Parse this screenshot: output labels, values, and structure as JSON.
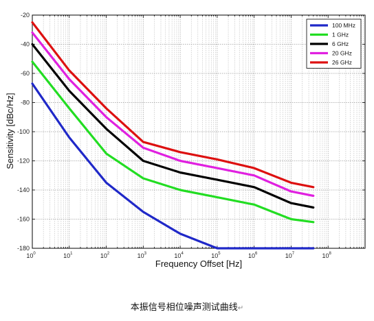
{
  "chart_data": {
    "type": "line",
    "title": "",
    "xlabel": "Frequency Offset [Hz]",
    "ylabel": "Sensitivity [dBc/Hz]",
    "xscale": "log",
    "xlim": [
      1,
      1000000000
    ],
    "ylim": [
      -180,
      -20
    ],
    "x_ticks": [
      {
        "base": "10",
        "exp": "0"
      },
      {
        "base": "10",
        "exp": "1"
      },
      {
        "base": "10",
        "exp": "2"
      },
      {
        "base": "10",
        "exp": "3"
      },
      {
        "base": "10",
        "exp": "4"
      },
      {
        "base": "10",
        "exp": "5"
      },
      {
        "base": "10",
        "exp": "6"
      },
      {
        "base": "10",
        "exp": "7"
      },
      {
        "base": "10",
        "exp": "8"
      }
    ],
    "y_ticks": [
      "-20",
      "-40",
      "-60",
      "-80",
      "-100",
      "-120",
      "-140",
      "-160",
      "-180"
    ],
    "grid": true,
    "legend_position": "top-right",
    "series": [
      {
        "name": "100 MHz",
        "color": "#1f28c8",
        "x": [
          1,
          10,
          100,
          1000,
          10000,
          100000,
          1000000,
          10000000,
          40000000
        ],
        "y": [
          -67,
          -104,
          -135,
          -155,
          -170,
          -180,
          -180,
          -180,
          -180
        ]
      },
      {
        "name": "1 GHz",
        "color": "#22dd22",
        "x": [
          1,
          10,
          100,
          1000,
          10000,
          100000,
          1000000,
          10000000,
          40000000
        ],
        "y": [
          -52,
          -84,
          -115,
          -132,
          -140,
          -145,
          -150,
          -160,
          -162
        ]
      },
      {
        "name": "6 GHz",
        "color": "#000000",
        "x": [
          1,
          10,
          100,
          1000,
          10000,
          100000,
          1000000,
          10000000,
          40000000
        ],
        "y": [
          -40,
          -72,
          -98,
          -120,
          -128,
          -133,
          -138,
          -149,
          -152
        ]
      },
      {
        "name": "20 GHz",
        "color": "#e020e0",
        "x": [
          1,
          10,
          100,
          1000,
          10000,
          100000,
          1000000,
          10000000,
          40000000
        ],
        "y": [
          -32,
          -64,
          -90,
          -111,
          -120,
          -125,
          -130,
          -141,
          -144
        ]
      },
      {
        "name": "26 GHz",
        "color": "#dd1010",
        "x": [
          1,
          10,
          100,
          1000,
          10000,
          100000,
          1000000,
          10000000,
          40000000
        ],
        "y": [
          -25,
          -58,
          -84,
          -107,
          -114,
          -119,
          -125,
          -135,
          -138
        ]
      }
    ]
  },
  "caption": {
    "text": "本振信号相位噪声测试曲线",
    "mark": "↵"
  }
}
